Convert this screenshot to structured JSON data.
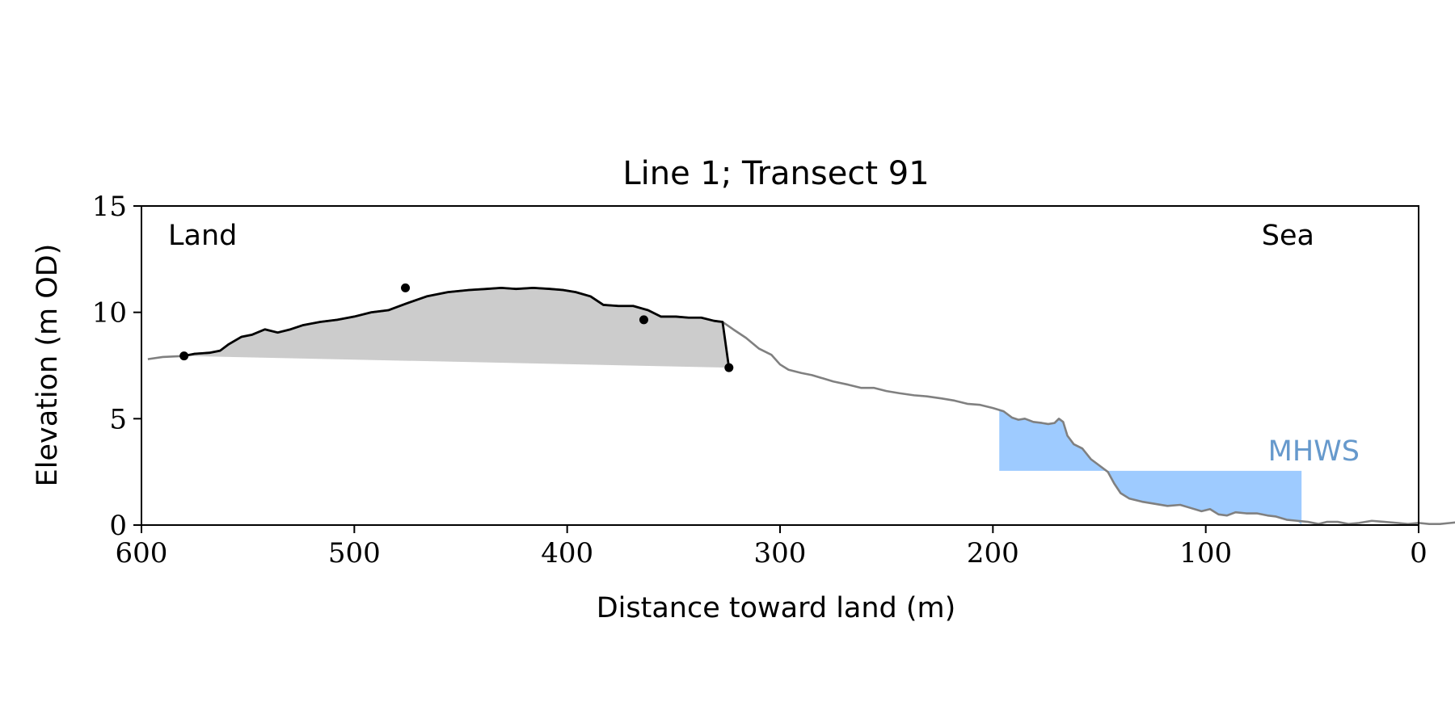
{
  "chart_data": {
    "type": "line",
    "title": "Line 1; Transect 91",
    "xlabel": "Distance toward land (m)",
    "ylabel": "Elevation (m OD)",
    "xlim": [
      600,
      0
    ],
    "ylim": [
      0,
      15
    ],
    "x_inverted": true,
    "xticks": [
      600,
      500,
      400,
      300,
      200,
      100,
      0
    ],
    "yticks": [
      0,
      5,
      10,
      15
    ],
    "grid": false,
    "annotations": {
      "land": "Land",
      "sea": "Sea",
      "mhws": "MHWS"
    },
    "mhws": {
      "elevation": 2.55,
      "x_from": 197,
      "x_to": 55,
      "color": "#9ecbff",
      "label_color": "#6699cc"
    },
    "dune_fill_color": "#cccccc",
    "colors": {
      "profile": "#808080",
      "dune": "#000000",
      "markers": "#000000"
    },
    "series": [
      {
        "values": [
          [
            597,
            7.8
          ],
          [
            590,
            7.9
          ],
          [
            580,
            7.95
          ],
          [
            575,
            8.05
          ],
          [
            568,
            8.1
          ],
          [
            563,
            8.2
          ],
          [
            559,
            8.5
          ],
          [
            553,
            8.85
          ],
          [
            548,
            8.95
          ],
          [
            542,
            9.2
          ],
          [
            536,
            9.05
          ],
          [
            530,
            9.2
          ],
          [
            524,
            9.4
          ],
          [
            516,
            9.55
          ],
          [
            508,
            9.65
          ],
          [
            500,
            9.8
          ],
          [
            492,
            10.0
          ],
          [
            484,
            10.1
          ],
          [
            476,
            10.4
          ],
          [
            466,
            10.75
          ],
          [
            456,
            10.95
          ],
          [
            446,
            11.05
          ],
          [
            438,
            11.1
          ],
          [
            431,
            11.15
          ],
          [
            424,
            11.1
          ],
          [
            416,
            11.15
          ],
          [
            408,
            11.1
          ],
          [
            402,
            11.05
          ],
          [
            396,
            10.95
          ],
          [
            389,
            10.75
          ],
          [
            383,
            10.35
          ],
          [
            376,
            10.3
          ],
          [
            369,
            10.3
          ],
          [
            362,
            10.1
          ],
          [
            356,
            9.8
          ],
          [
            349,
            9.8
          ],
          [
            343,
            9.75
          ],
          [
            337,
            9.75
          ],
          [
            331,
            9.6
          ],
          [
            327,
            9.55
          ],
          [
            322,
            9.2
          ],
          [
            316,
            8.8
          ],
          [
            310,
            8.3
          ],
          [
            304,
            8.0
          ],
          [
            300,
            7.55
          ],
          [
            296,
            7.3
          ],
          [
            290,
            7.15
          ],
          [
            285,
            7.05
          ],
          [
            280,
            6.9
          ],
          [
            275,
            6.75
          ],
          [
            268,
            6.6
          ],
          [
            262,
            6.45
          ],
          [
            256,
            6.45
          ],
          [
            250,
            6.3
          ],
          [
            244,
            6.2
          ],
          [
            237,
            6.1
          ],
          [
            231,
            6.05
          ],
          [
            224,
            5.95
          ],
          [
            218,
            5.85
          ],
          [
            212,
            5.7
          ],
          [
            206,
            5.65
          ],
          [
            200,
            5.5
          ],
          [
            195,
            5.35
          ],
          [
            191,
            5.05
          ],
          [
            188,
            4.95
          ],
          [
            185,
            5.0
          ],
          [
            181,
            4.85
          ],
          [
            177,
            4.8
          ],
          [
            174,
            4.75
          ],
          [
            171,
            4.8
          ],
          [
            169,
            5.0
          ],
          [
            167,
            4.85
          ],
          [
            165,
            4.2
          ],
          [
            162,
            3.8
          ],
          [
            158,
            3.6
          ],
          [
            154,
            3.1
          ],
          [
            150,
            2.8
          ],
          [
            146,
            2.5
          ],
          [
            143,
            1.95
          ],
          [
            140,
            1.5
          ],
          [
            136,
            1.25
          ],
          [
            130,
            1.1
          ],
          [
            124,
            1.0
          ],
          [
            118,
            0.9
          ],
          [
            112,
            0.95
          ],
          [
            107,
            0.8
          ],
          [
            102,
            0.65
          ],
          [
            98,
            0.75
          ],
          [
            94,
            0.5
          ],
          [
            90,
            0.45
          ],
          [
            86,
            0.6
          ],
          [
            81,
            0.55
          ],
          [
            76,
            0.55
          ],
          [
            71,
            0.45
          ],
          [
            67,
            0.4
          ],
          [
            62,
            0.25
          ],
          [
            57,
            0.2
          ],
          [
            52,
            0.15
          ],
          [
            47,
            0.05
          ],
          [
            43,
            0.15
          ],
          [
            38,
            0.15
          ],
          [
            33,
            0.05
          ],
          [
            28,
            0.1
          ],
          [
            22,
            0.2
          ],
          [
            16,
            0.15
          ],
          [
            10,
            0.1
          ],
          [
            5,
            0.05
          ],
          [
            0,
            0.1
          ],
          [
            -5,
            0.05
          ],
          [
            -10,
            0.05
          ],
          [
            -15,
            0.1
          ],
          [
            -20,
            0.15
          ],
          [
            -25,
            0.1
          ],
          [
            -30,
            0.05
          ],
          [
            -35,
            0.05
          ],
          [
            -40,
            0.05
          ],
          [
            -45,
            0.0
          ]
        ]
      }
    ],
    "dune": {
      "x_start": 580,
      "x_end": 324,
      "toe_elevation_start": 7.95,
      "toe_elevation_end": 7.4,
      "markers": [
        [
          580,
          7.95
        ],
        [
          476,
          11.15
        ],
        [
          364,
          9.65
        ],
        [
          324,
          7.4
        ]
      ]
    }
  }
}
